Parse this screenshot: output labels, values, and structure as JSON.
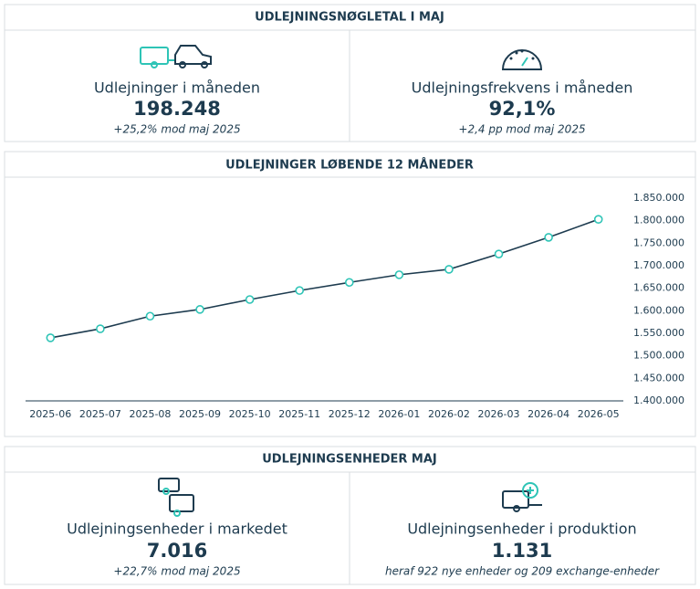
{
  "kpi_section": {
    "title": "UDLEJNINGSNØGLETAL I MAJ",
    "cards": [
      {
        "label": "Udlejninger i måneden",
        "value": "198.248",
        "note": "+25,2% mod maj 2025"
      },
      {
        "label": "Udlejningsfrekvens i måneden",
        "value": "92,1%",
        "note": "+2,4 pp mod maj 2025"
      }
    ]
  },
  "chart_data": {
    "type": "line",
    "title": "UDLEJNINGER LØBENDE 12 MÅNEDER",
    "categories": [
      "2025-06",
      "2025-07",
      "2025-08",
      "2025-09",
      "2025-10",
      "2025-11",
      "2025-12",
      "2026-01",
      "2026-02",
      "2026-03",
      "2026-04",
      "2026-05"
    ],
    "values": [
      1540000,
      1560000,
      1588000,
      1603000,
      1625000,
      1645000,
      1663000,
      1680000,
      1692000,
      1726000,
      1763000,
      1803000
    ],
    "color": "#1d3b4f",
    "marker_color": "#2ec4b6",
    "ylim": [
      1400000,
      1850000
    ],
    "yticks": [
      {
        "value": 1400000,
        "label": "1.400.000"
      },
      {
        "value": 1450000,
        "label": "1.450.000"
      },
      {
        "value": 1500000,
        "label": "1.500.000"
      },
      {
        "value": 1550000,
        "label": "1.550.000"
      },
      {
        "value": 1600000,
        "label": "1.600.000"
      },
      {
        "value": 1650000,
        "label": "1.650.000"
      },
      {
        "value": 1700000,
        "label": "1.700.000"
      },
      {
        "value": 1750000,
        "label": "1.750.000"
      },
      {
        "value": 1800000,
        "label": "1.800.000"
      },
      {
        "value": 1850000,
        "label": "1.850.000"
      }
    ],
    "grid": false
  },
  "units_section": {
    "title": "UDLEJNINGSENHEDER MAJ",
    "cards": [
      {
        "label": "Udlejningsenheder i markedet",
        "value": "7.016",
        "note": "+22,7% mod maj 2025"
      },
      {
        "label": "Udlejningsenheder i produktion",
        "value": "1.131",
        "note": "heraf 922 nye enheder og 209 exchange-enheder"
      }
    ]
  }
}
